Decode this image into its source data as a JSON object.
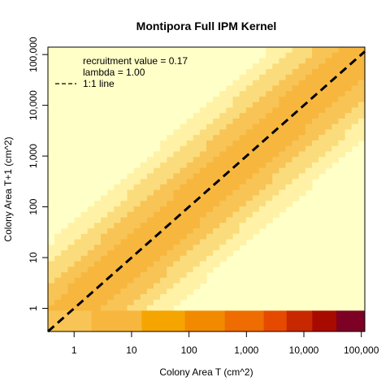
{
  "chart_data": {
    "type": "heatmap",
    "title": "Montipora Full IPM Kernel",
    "xlabel": "Colony Area T (cm^2)",
    "ylabel": "Colony Area T+1 (cm^2)",
    "x_scale": "log",
    "y_scale": "log",
    "xlim": [
      0.35,
      115000
    ],
    "ylim": [
      0.35,
      140000
    ],
    "x_ticks": [
      {
        "value": 1,
        "label": "1"
      },
      {
        "value": 10,
        "label": "10"
      },
      {
        "value": 100,
        "label": "100"
      },
      {
        "value": 1000,
        "label": "1,000"
      },
      {
        "value": 10000,
        "label": "10,000"
      },
      {
        "value": 100000,
        "label": "100,000"
      }
    ],
    "y_ticks": [
      {
        "value": 1,
        "label": "1"
      },
      {
        "value": 10,
        "label": "10"
      },
      {
        "value": 100,
        "label": "100"
      },
      {
        "value": 1000,
        "label": "1,000"
      },
      {
        "value": 10000,
        "label": "10,000"
      },
      {
        "value": 100000,
        "label": "100,000"
      }
    ],
    "palette": [
      "#ffffc8",
      "#fff2a6",
      "#fbdc7c",
      "#f8c456",
      "#f7b73e",
      "#f5a400",
      "#f28a00",
      "#ee6c00",
      "#e64a00",
      "#c82800",
      "#a80a00",
      "#7d0025"
    ],
    "recruitment_row": {
      "y_range": [
        0.35,
        0.9
      ],
      "x_breaks": [
        0.35,
        2.0,
        15,
        85,
        420,
        2000,
        5000,
        14000,
        37000,
        115000
      ],
      "levels": [
        3,
        4,
        5,
        6,
        7,
        8,
        9,
        10,
        11
      ]
    },
    "diagonal_line": {
      "style": "dashed",
      "color": "#000000"
    },
    "legend": {
      "position": "top-left",
      "entries": [
        {
          "text": "recruitment value = 0.17",
          "symbol": "none"
        },
        {
          "text": "lambda = 1.00",
          "symbol": "none"
        },
        {
          "text": "1:1 line",
          "symbol": "dashed-line"
        }
      ]
    }
  }
}
